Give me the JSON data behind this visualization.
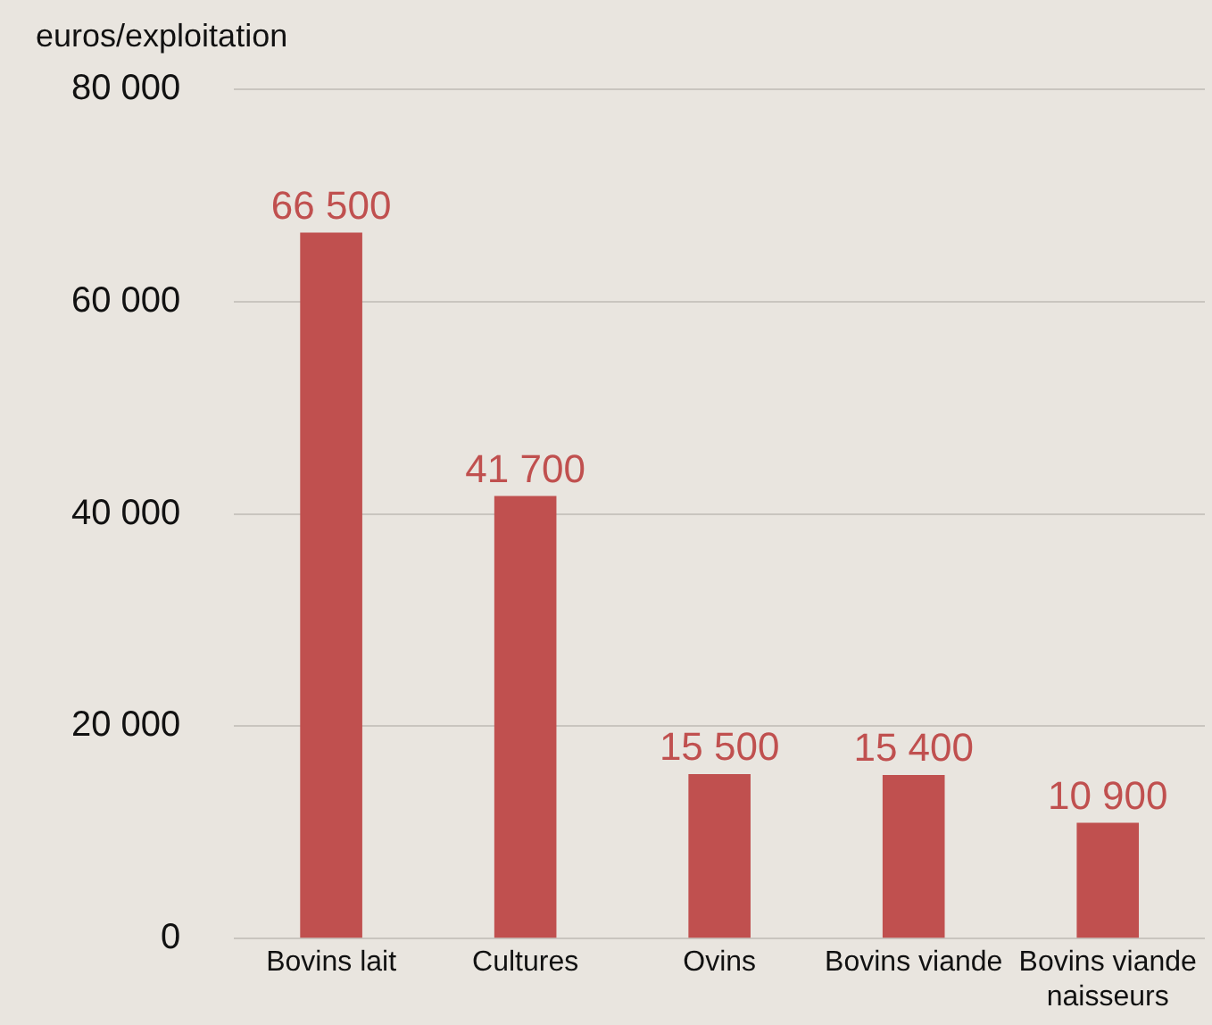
{
  "chart_data": {
    "type": "bar",
    "ylabel": "euros/exploitation",
    "categories": [
      "Bovins lait",
      "Cultures",
      "Ovins",
      "Bovins viande",
      "Bovins viande naisseurs"
    ],
    "values": [
      66500,
      41700,
      15500,
      15400,
      10900
    ],
    "value_labels": [
      "66 500",
      "41 700",
      "15 500",
      "15 400",
      "10 900"
    ],
    "color": "#c0504f",
    "ylim": [
      0,
      80000
    ],
    "yticks": [
      {
        "value": 0,
        "label": "0"
      },
      {
        "value": 20000,
        "label": "20 000"
      },
      {
        "value": 40000,
        "label": "40 000"
      },
      {
        "value": 60000,
        "label": "60 000"
      },
      {
        "value": 80000,
        "label": "80 000"
      }
    ],
    "grid": "y",
    "legend": false
  }
}
